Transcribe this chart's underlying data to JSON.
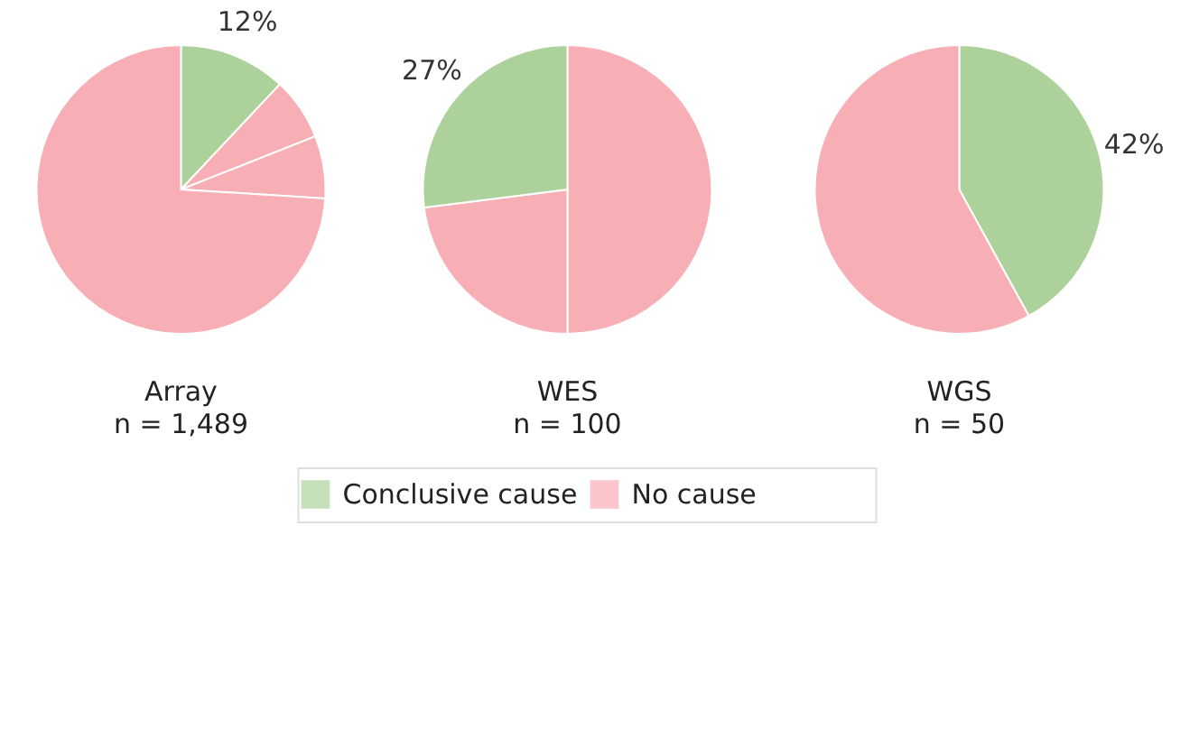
{
  "chart_data": [
    {
      "type": "pie",
      "title": "Array",
      "subtitle": "n = 1,489",
      "categories": [
        "Conclusive cause",
        "No cause",
        null,
        null
      ],
      "values": [
        12,
        7,
        7,
        74
      ],
      "colors": [
        "#acd19a",
        "#f8aeb5",
        "#f8aeb5",
        "#f8aeb5"
      ],
      "value_labels": [
        "12%",
        null,
        null,
        null
      ],
      "legend": "bottom"
    },
    {
      "type": "pie",
      "title": "WES",
      "subtitle": "n = 100",
      "categories": [
        null,
        null,
        null
      ],
      "values": [
        50,
        23,
        27
      ],
      "colors": [
        "#f8aeb5",
        "#f8aeb5",
        "#acd19a"
      ],
      "value_labels": [
        null,
        null,
        "27%"
      ]
    },
    {
      "type": "pie",
      "title": "WGS",
      "subtitle": "n = 50",
      "categories": [
        null,
        null
      ],
      "values": [
        42,
        58
      ],
      "colors": [
        "#acd19a",
        "#f8aeb5"
      ],
      "value_labels": [
        "42%",
        null
      ]
    }
  ]
}
